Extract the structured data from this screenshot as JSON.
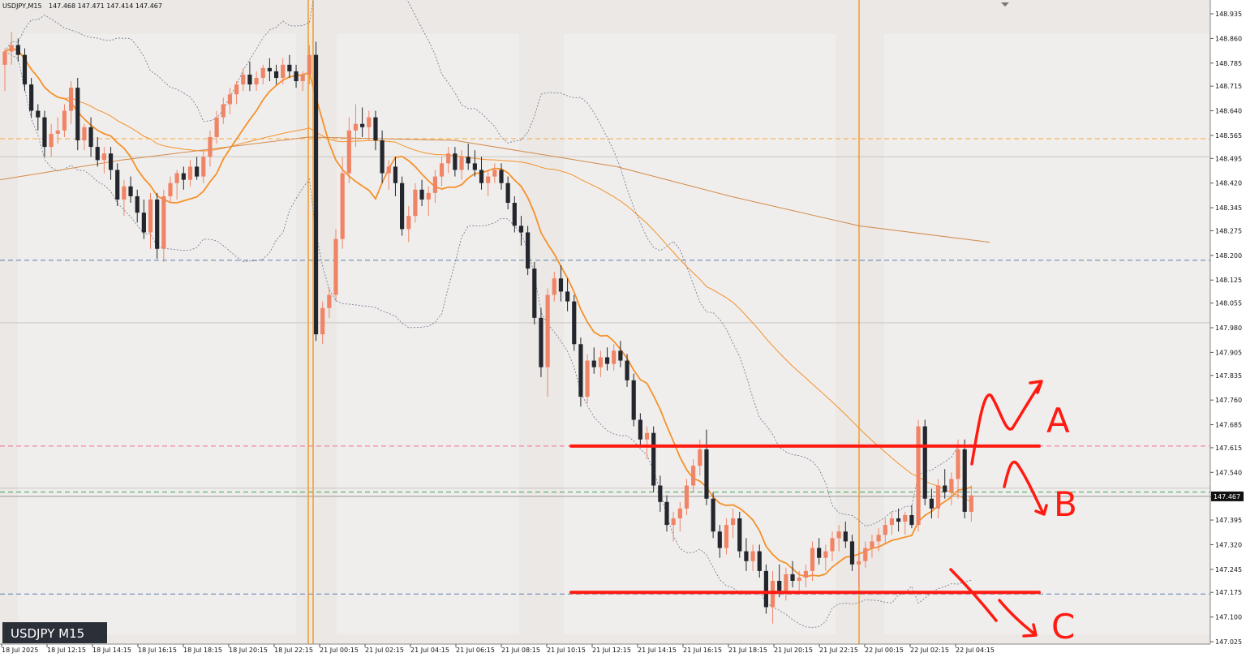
{
  "header": {
    "symbol_tf": "USDJPY,M15",
    "quote": "147.468 147.471 147.414 147.467"
  },
  "watermark": {
    "label": "USDJPY M15"
  },
  "price_badge": "147.467",
  "colors": {
    "bg": "#ebe8e5",
    "bull": "#f08466",
    "bear": "#23262d",
    "ma": "#f5912a",
    "band": "#7a8196",
    "vline": "#f2961e",
    "annotation": "#ff1a12"
  },
  "annotations": {
    "a": "A",
    "b": "B",
    "c": "C"
  },
  "chart_data": {
    "type": "candlestick",
    "symbol": "USDJPY",
    "timeframe": "M15",
    "ylim": [
      147.025,
      148.935
    ],
    "y_ticks": [
      "148.935",
      "148.860",
      "148.785",
      "148.715",
      "148.640",
      "148.565",
      "148.495",
      "148.420",
      "148.345",
      "148.275",
      "148.200",
      "148.125",
      "148.055",
      "147.980",
      "147.905",
      "147.835",
      "147.760",
      "147.685",
      "147.615",
      "147.540",
      "147.465",
      "147.395",
      "147.320",
      "147.245",
      "147.175",
      "147.100",
      "147.025"
    ],
    "x_ticks": [
      "18 Jul 2025",
      "18 Jul 12:15",
      "18 Jul 14:15",
      "18 Jul 16:15",
      "18 Jul 18:15",
      "18 Jul 20:15",
      "18 Jul 22:15",
      "21 Jul 00:15",
      "21 Jul 02:15",
      "21 Jul 04:15",
      "21 Jul 06:15",
      "21 Jul 08:15",
      "21 Jul 10:15",
      "21 Jul 12:15",
      "21 Jul 14:15",
      "21 Jul 16:15",
      "21 Jul 18:15",
      "21 Jul 20:15",
      "21 Jul 22:15",
      "22 Jul 00:15",
      "22 Jul 02:15",
      "22 Jul 04:15"
    ],
    "current_price": 147.467,
    "horizontal_levels": [
      {
        "price": 148.555,
        "style": "dash",
        "color": "#f7a53a"
      },
      {
        "price": 148.5,
        "style": "solid",
        "color": "#c9c6c2"
      },
      {
        "price": 148.185,
        "style": "dash",
        "color": "#5b7fb0"
      },
      {
        "price": 147.995,
        "style": "solid",
        "color": "#c9c6c2"
      },
      {
        "price": 147.62,
        "style": "dash",
        "color": "#ee6f9a"
      },
      {
        "price": 147.492,
        "style": "solid",
        "color": "#c9c6c2"
      },
      {
        "price": 147.48,
        "style": "dash",
        "color": "#3fa05a"
      },
      {
        "price": 147.467,
        "style": "solid",
        "color": "#9a9a9a"
      },
      {
        "price": 147.17,
        "style": "dash",
        "color": "#5b7fb0"
      }
    ],
    "drawn_levels": [
      147.62,
      147.175
    ],
    "scenarios": [
      "A",
      "B",
      "C"
    ],
    "candles": [
      [
        148.78,
        148.83,
        148.7,
        148.82
      ],
      [
        148.82,
        148.88,
        148.78,
        148.84
      ],
      [
        148.84,
        148.86,
        148.79,
        148.81
      ],
      [
        148.81,
        148.83,
        148.7,
        148.72
      ],
      [
        148.72,
        148.74,
        148.62,
        148.64
      ],
      [
        148.64,
        148.66,
        148.58,
        148.62
      ],
      [
        148.62,
        148.64,
        148.5,
        148.53
      ],
      [
        148.53,
        148.6,
        148.5,
        148.57
      ],
      [
        148.57,
        148.62,
        148.54,
        148.58
      ],
      [
        148.58,
        148.66,
        148.56,
        148.64
      ],
      [
        148.64,
        148.73,
        148.6,
        148.71
      ],
      [
        148.71,
        148.74,
        148.52,
        148.55
      ],
      [
        148.55,
        148.6,
        148.52,
        148.59
      ],
      [
        148.59,
        148.62,
        148.5,
        148.53
      ],
      [
        148.53,
        148.56,
        148.47,
        148.49
      ],
      [
        148.49,
        148.53,
        148.45,
        148.51
      ],
      [
        148.51,
        148.53,
        148.43,
        148.46
      ],
      [
        148.46,
        148.48,
        148.35,
        148.37
      ],
      [
        148.37,
        148.43,
        148.32,
        148.41
      ],
      [
        148.41,
        148.44,
        148.36,
        148.38
      ],
      [
        148.38,
        148.4,
        148.3,
        148.33
      ],
      [
        148.33,
        148.37,
        148.25,
        148.27
      ],
      [
        148.27,
        148.39,
        148.22,
        148.37
      ],
      [
        148.37,
        148.39,
        148.19,
        148.22
      ],
      [
        148.22,
        148.4,
        148.18,
        148.38
      ],
      [
        148.38,
        148.44,
        148.36,
        148.42
      ],
      [
        148.42,
        148.46,
        148.37,
        148.45
      ],
      [
        148.45,
        148.47,
        148.4,
        148.43
      ],
      [
        148.43,
        148.49,
        148.41,
        148.47
      ],
      [
        148.47,
        148.5,
        148.43,
        148.44
      ],
      [
        148.44,
        148.52,
        148.42,
        148.5
      ],
      [
        148.5,
        148.58,
        148.47,
        148.56
      ],
      [
        148.56,
        148.64,
        148.54,
        148.62
      ],
      [
        148.62,
        148.68,
        148.6,
        148.66
      ],
      [
        148.66,
        148.71,
        148.63,
        148.69
      ],
      [
        148.69,
        148.73,
        148.66,
        148.72
      ],
      [
        148.72,
        148.77,
        148.7,
        148.75
      ],
      [
        148.75,
        148.79,
        148.7,
        148.72
      ],
      [
        148.72,
        148.76,
        148.7,
        148.74
      ],
      [
        148.74,
        148.78,
        148.72,
        148.77
      ],
      [
        148.77,
        148.8,
        148.73,
        148.76
      ],
      [
        148.76,
        148.78,
        148.72,
        148.74
      ],
      [
        148.74,
        148.8,
        148.72,
        148.78
      ],
      [
        148.78,
        148.81,
        148.74,
        148.76
      ],
      [
        148.76,
        148.78,
        148.71,
        148.73
      ],
      [
        148.73,
        148.76,
        148.7,
        148.75
      ],
      [
        148.75,
        148.84,
        148.72,
        148.81
      ],
      [
        148.81,
        148.85,
        147.94,
        147.96
      ],
      [
        147.96,
        148.06,
        147.93,
        148.04
      ],
      [
        148.04,
        148.1,
        148.01,
        148.08
      ],
      [
        148.08,
        148.28,
        148.06,
        148.25
      ],
      [
        148.25,
        148.5,
        148.22,
        148.45
      ],
      [
        148.45,
        148.62,
        148.42,
        148.58
      ],
      [
        148.58,
        148.66,
        148.53,
        148.6
      ],
      [
        148.6,
        148.65,
        148.56,
        148.59
      ],
      [
        148.59,
        148.64,
        148.55,
        148.62
      ],
      [
        148.62,
        148.64,
        148.52,
        148.55
      ],
      [
        148.55,
        148.58,
        148.42,
        148.45
      ],
      [
        148.45,
        148.49,
        148.4,
        148.47
      ],
      [
        148.47,
        148.5,
        148.38,
        148.42
      ],
      [
        148.42,
        148.44,
        148.26,
        148.28
      ],
      [
        148.28,
        148.35,
        148.24,
        148.32
      ],
      [
        148.32,
        148.42,
        148.3,
        148.4
      ],
      [
        148.4,
        148.43,
        148.35,
        148.37
      ],
      [
        148.37,
        148.41,
        148.32,
        148.39
      ],
      [
        148.39,
        148.46,
        148.36,
        148.44
      ],
      [
        148.44,
        148.5,
        148.41,
        148.48
      ],
      [
        148.48,
        148.53,
        148.45,
        148.51
      ],
      [
        148.51,
        148.53,
        148.44,
        148.46
      ],
      [
        148.46,
        148.52,
        148.43,
        148.5
      ],
      [
        148.5,
        148.54,
        148.46,
        148.48
      ],
      [
        148.48,
        148.52,
        148.44,
        148.46
      ],
      [
        148.46,
        148.5,
        148.4,
        148.42
      ],
      [
        148.42,
        148.46,
        148.38,
        148.44
      ],
      [
        148.44,
        148.48,
        148.42,
        148.46
      ],
      [
        148.46,
        148.48,
        148.4,
        148.42
      ],
      [
        148.42,
        148.44,
        148.34,
        148.36
      ],
      [
        148.36,
        148.38,
        148.27,
        148.29
      ],
      [
        148.29,
        148.32,
        148.23,
        148.27
      ],
      [
        148.27,
        148.29,
        148.14,
        148.16
      ],
      [
        148.16,
        148.18,
        147.99,
        148.01
      ],
      [
        148.01,
        148.04,
        147.83,
        147.86
      ],
      [
        147.86,
        148.1,
        147.77,
        148.08
      ],
      [
        148.08,
        148.15,
        148.06,
        148.13
      ],
      [
        148.13,
        148.17,
        148.06,
        148.09
      ],
      [
        148.09,
        148.13,
        148.03,
        148.06
      ],
      [
        148.06,
        148.08,
        147.91,
        147.93
      ],
      [
        147.93,
        147.95,
        147.74,
        147.77
      ],
      [
        147.77,
        147.9,
        147.75,
        147.88
      ],
      [
        147.88,
        147.92,
        147.84,
        147.86
      ],
      [
        147.86,
        147.91,
        147.83,
        147.89
      ],
      [
        147.89,
        147.92,
        147.85,
        147.87
      ],
      [
        147.87,
        147.93,
        147.85,
        147.91
      ],
      [
        147.91,
        147.94,
        147.86,
        147.88
      ],
      [
        147.88,
        147.9,
        147.8,
        147.82
      ],
      [
        147.82,
        147.84,
        147.68,
        147.7
      ],
      [
        147.7,
        147.72,
        147.62,
        147.64
      ],
      [
        147.64,
        147.68,
        147.58,
        147.66
      ],
      [
        147.66,
        147.68,
        147.48,
        147.5
      ],
      [
        147.5,
        147.53,
        147.42,
        147.45
      ],
      [
        147.45,
        147.47,
        147.36,
        147.38
      ],
      [
        147.38,
        147.42,
        147.33,
        147.4
      ],
      [
        147.4,
        147.45,
        147.36,
        147.43
      ],
      [
        147.43,
        147.52,
        147.41,
        147.5
      ],
      [
        147.5,
        147.58,
        147.48,
        147.56
      ],
      [
        147.56,
        147.64,
        147.53,
        147.61
      ],
      [
        147.61,
        147.67,
        147.44,
        147.46
      ],
      [
        147.46,
        147.48,
        147.34,
        147.36
      ],
      [
        147.36,
        147.38,
        147.28,
        147.31
      ],
      [
        147.31,
        147.4,
        147.29,
        147.38
      ],
      [
        147.38,
        147.43,
        147.34,
        147.4
      ],
      [
        147.4,
        147.42,
        147.28,
        147.3
      ],
      [
        147.3,
        147.34,
        147.24,
        147.27
      ],
      [
        147.27,
        147.32,
        147.24,
        147.3
      ],
      [
        147.3,
        147.32,
        147.22,
        147.24
      ],
      [
        147.24,
        147.26,
        147.11,
        147.13
      ],
      [
        147.13,
        147.24,
        147.08,
        147.21
      ],
      [
        147.21,
        147.26,
        147.16,
        147.18
      ],
      [
        147.18,
        147.25,
        147.15,
        147.23
      ],
      [
        147.23,
        147.27,
        147.19,
        147.21
      ],
      [
        147.21,
        147.24,
        147.18,
        147.22
      ],
      [
        147.22,
        147.26,
        147.19,
        147.24
      ],
      [
        147.24,
        147.33,
        147.21,
        147.31
      ],
      [
        147.31,
        147.34,
        147.26,
        147.28
      ],
      [
        147.28,
        147.32,
        147.24,
        147.3
      ],
      [
        147.3,
        147.36,
        147.27,
        147.34
      ],
      [
        147.34,
        147.38,
        147.3,
        147.36
      ],
      [
        147.36,
        147.39,
        147.31,
        147.33
      ],
      [
        147.33,
        147.35,
        147.24,
        147.26
      ],
      [
        147.26,
        147.3,
        147.19,
        147.27
      ],
      [
        147.27,
        147.33,
        147.25,
        147.31
      ],
      [
        147.31,
        147.35,
        147.28,
        147.33
      ],
      [
        147.33,
        147.37,
        147.3,
        147.35
      ],
      [
        147.35,
        147.4,
        147.32,
        147.38
      ],
      [
        147.38,
        147.42,
        147.35,
        147.4
      ],
      [
        147.4,
        147.43,
        147.36,
        147.39
      ],
      [
        147.39,
        147.42,
        147.35,
        147.41
      ],
      [
        147.41,
        147.44,
        147.37,
        147.38
      ],
      [
        147.38,
        147.7,
        147.36,
        147.68
      ],
      [
        147.68,
        147.7,
        147.44,
        147.46
      ],
      [
        147.46,
        147.49,
        147.4,
        147.43
      ],
      [
        147.43,
        147.52,
        147.4,
        147.5
      ],
      [
        147.5,
        147.55,
        147.46,
        147.48
      ],
      [
        147.48,
        147.54,
        147.44,
        147.52
      ],
      [
        147.52,
        147.64,
        147.46,
        147.61
      ],
      [
        147.61,
        147.64,
        147.4,
        147.42
      ],
      [
        147.42,
        147.5,
        147.39,
        147.47
      ]
    ]
  }
}
